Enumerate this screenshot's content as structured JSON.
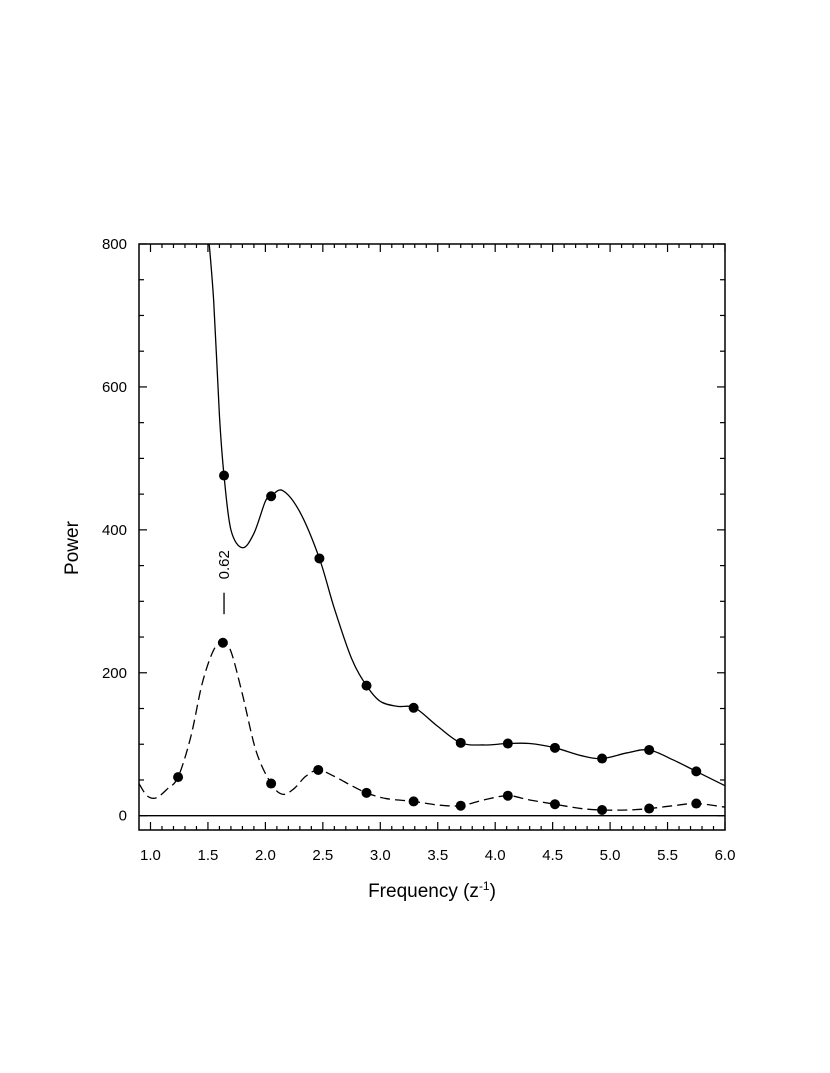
{
  "chart_data": {
    "type": "line",
    "title": "",
    "xlabel": "Frequency (z",
    "xlabel_sup": "-1",
    "xlabel_close": ")",
    "ylabel": "Power",
    "xlim": [
      0.9,
      6.0
    ],
    "ylim": [
      -20,
      800
    ],
    "x_ticks": [
      1.0,
      1.5,
      2.0,
      2.5,
      3.0,
      3.5,
      4.0,
      4.5,
      5.0,
      5.5,
      6.0
    ],
    "x_tick_labels": [
      "1.0",
      "1.5",
      "2.0",
      "2.5",
      "3.0",
      "3.5",
      "4.0",
      "4.5",
      "5.0",
      "5.5",
      "6.0"
    ],
    "y_ticks": [
      0,
      200,
      400,
      600,
      800
    ],
    "y_tick_labels": [
      "0",
      "200",
      "400",
      "600",
      "800"
    ],
    "grid": false,
    "zero_line": true,
    "annotation": {
      "text": "0.62",
      "x": 1.64,
      "y_from": 282,
      "y_to": 312
    },
    "series": [
      {
        "style": "solid",
        "curve": [
          [
            1.5,
            820
          ],
          [
            1.55,
            720
          ],
          [
            1.6,
            560
          ],
          [
            1.64,
            476
          ],
          [
            1.7,
            400
          ],
          [
            1.8,
            375
          ],
          [
            1.9,
            395
          ],
          [
            2.0,
            440
          ],
          [
            2.05,
            447
          ],
          [
            2.15,
            455
          ],
          [
            2.3,
            425
          ],
          [
            2.47,
            360
          ],
          [
            2.6,
            290
          ],
          [
            2.75,
            220
          ],
          [
            2.88,
            182
          ],
          [
            3.0,
            160
          ],
          [
            3.15,
            153
          ],
          [
            3.3,
            151
          ],
          [
            3.5,
            125
          ],
          [
            3.7,
            102
          ],
          [
            3.9,
            99
          ],
          [
            4.11,
            101
          ],
          [
            4.3,
            101
          ],
          [
            4.52,
            95
          ],
          [
            4.75,
            84
          ],
          [
            4.93,
            80
          ],
          [
            5.15,
            88
          ],
          [
            5.34,
            92
          ],
          [
            5.55,
            78
          ],
          [
            5.75,
            62
          ],
          [
            6.0,
            42
          ]
        ],
        "points": [
          [
            1.64,
            476
          ],
          [
            2.05,
            447
          ],
          [
            2.47,
            360
          ],
          [
            2.88,
            182
          ],
          [
            3.29,
            151
          ],
          [
            3.7,
            102
          ],
          [
            4.11,
            101
          ],
          [
            4.52,
            95
          ],
          [
            4.93,
            80
          ],
          [
            5.34,
            92
          ],
          [
            5.75,
            62
          ]
        ]
      },
      {
        "style": "dashed",
        "curve": [
          [
            0.9,
            45
          ],
          [
            0.97,
            28
          ],
          [
            1.05,
            25
          ],
          [
            1.15,
            38
          ],
          [
            1.24,
            54
          ],
          [
            1.35,
            110
          ],
          [
            1.45,
            185
          ],
          [
            1.55,
            232
          ],
          [
            1.63,
            242
          ],
          [
            1.7,
            230
          ],
          [
            1.8,
            170
          ],
          [
            1.92,
            90
          ],
          [
            2.05,
            45
          ],
          [
            2.15,
            30
          ],
          [
            2.25,
            38
          ],
          [
            2.35,
            55
          ],
          [
            2.46,
            64
          ],
          [
            2.6,
            55
          ],
          [
            2.75,
            42
          ],
          [
            2.88,
            32
          ],
          [
            3.05,
            24
          ],
          [
            3.29,
            20
          ],
          [
            3.5,
            15
          ],
          [
            3.7,
            14
          ],
          [
            3.9,
            22
          ],
          [
            4.11,
            28
          ],
          [
            4.3,
            22
          ],
          [
            4.52,
            16
          ],
          [
            4.75,
            10
          ],
          [
            4.93,
            8
          ],
          [
            5.15,
            8
          ],
          [
            5.34,
            10
          ],
          [
            5.55,
            14
          ],
          [
            5.75,
            17
          ],
          [
            6.0,
            12
          ]
        ],
        "points": [
          [
            1.24,
            54
          ],
          [
            1.63,
            242
          ],
          [
            2.05,
            45
          ],
          [
            2.46,
            64
          ],
          [
            2.88,
            32
          ],
          [
            3.29,
            20
          ],
          [
            3.7,
            14
          ],
          [
            4.11,
            28
          ],
          [
            4.52,
            16
          ],
          [
            4.93,
            8
          ],
          [
            5.34,
            10
          ],
          [
            5.75,
            17
          ]
        ]
      }
    ]
  }
}
